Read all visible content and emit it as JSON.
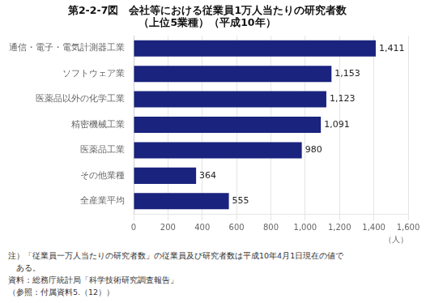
{
  "chart_data": {
    "type": "bar",
    "orientation": "horizontal",
    "title": "第2-2-7図　会社等における従業員1万人当たりの研究者数",
    "subtitle": "（上位5業種）（平成10年）",
    "xlabel": "（人）",
    "categories": [
      "通信・電子・電気計測器工業",
      "ソフトウェア業",
      "医薬品以外の化学工業",
      "精密機械工業",
      "医薬品工業",
      "その他業種",
      "全産業平均"
    ],
    "values": [
      1411,
      1153,
      1123,
      1091,
      980,
      364,
      555
    ],
    "value_labels": [
      "1,411",
      "1,153",
      "1,123",
      "1,091",
      "980",
      "364",
      "555"
    ],
    "data_labels": true,
    "color": "#1a237e",
    "xlim": [
      0,
      1600
    ],
    "xticks": [
      0,
      200,
      400,
      600,
      800,
      {
        "value": 1000,
        "label": "1,000"
      },
      {
        "value": 1200,
        "label": "1,200"
      },
      {
        "value": 1400,
        "label": "1,400"
      },
      {
        "value": 1600,
        "label": "1,600"
      }
    ],
    "grid": true,
    "annotations": [
      "注）「従業員一万人当たりの研究者数」の従業員及び研究者数は平成10年4月1日現在の値で",
      "　ある。",
      "資料：総務庁統計局「科学技術研究調査報告」",
      "（参照：付属資料5.（12））"
    ]
  }
}
